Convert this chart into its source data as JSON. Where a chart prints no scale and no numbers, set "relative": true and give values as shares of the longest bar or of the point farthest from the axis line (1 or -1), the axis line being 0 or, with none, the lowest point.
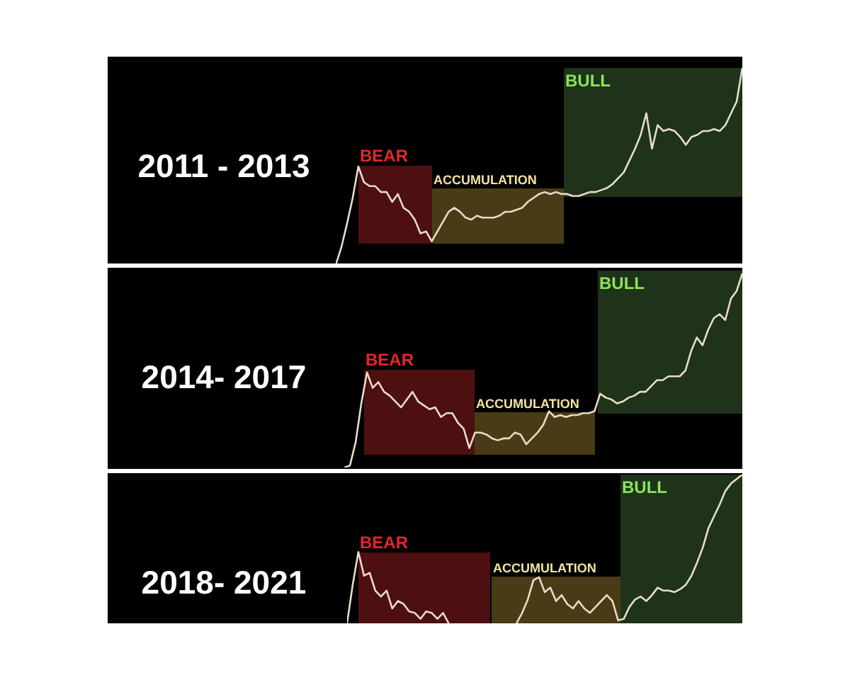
{
  "chart_data": [
    {
      "type": "line",
      "title": "2011 - 2013",
      "relative": true,
      "categories": [
        null,
        null,
        null,
        null,
        null,
        null,
        null,
        null,
        null,
        null,
        null,
        null,
        null,
        null,
        null,
        null,
        null,
        null,
        null,
        null,
        null,
        null,
        null,
        null,
        null,
        null,
        null,
        null,
        null,
        null,
        null,
        null,
        null,
        null,
        null,
        null,
        null,
        null,
        null,
        null,
        null,
        null,
        null,
        null,
        null,
        null,
        null,
        null,
        null,
        null,
        null,
        null,
        null,
        null,
        null,
        null,
        null,
        null,
        null,
        null,
        null,
        null,
        null,
        null,
        null,
        null,
        null,
        null,
        null,
        null,
        null,
        null,
        null
      ],
      "values": [
        0,
        0.09,
        0.21,
        0.34,
        0.5,
        0.42,
        0.4,
        0.4,
        0.37,
        0.37,
        0.32,
        0.36,
        0.29,
        0.27,
        0.23,
        0.16,
        0.17,
        0.12,
        0.17,
        0.22,
        0.27,
        0.29,
        0.27,
        0.24,
        0.23,
        0.25,
        0.24,
        0.24,
        0.24,
        0.25,
        0.27,
        0.27,
        0.28,
        0.29,
        0.32,
        0.34,
        0.36,
        0.37,
        0.36,
        0.37,
        0.36,
        0.36,
        0.35,
        0.35,
        0.36,
        0.37,
        0.37,
        0.38,
        0.39,
        0.41,
        0.44,
        0.47,
        0.53,
        0.59,
        0.66,
        0.77,
        0.59,
        0.71,
        0.68,
        0.69,
        0.68,
        0.65,
        0.61,
        0.65,
        0.66,
        0.68,
        0.68,
        0.69,
        0.68,
        0.71,
        0.77,
        0.83,
        1
      ],
      "color": "#e8dcc8",
      "annotations": [
        "BEAR",
        "ACCUMULATION",
        "BULL"
      ]
    },
    {
      "type": "line",
      "title": "2014- 2017",
      "relative": true,
      "categories": [
        null,
        null,
        null,
        null,
        null,
        null,
        null,
        null,
        null,
        null,
        null,
        null,
        null,
        null,
        null,
        null,
        null,
        null,
        null,
        null,
        null,
        null,
        null,
        null,
        null,
        null,
        null,
        null,
        null,
        null,
        null,
        null,
        null,
        null,
        null,
        null,
        null,
        null,
        null,
        null,
        null,
        null,
        null,
        null,
        null,
        null,
        null,
        null,
        null,
        null,
        null,
        null,
        null,
        null,
        null,
        null,
        null,
        null,
        null,
        null,
        null,
        null,
        null,
        null,
        null,
        null,
        null,
        null,
        null,
        null,
        null
      ],
      "values": [
        0,
        0.01,
        0.13,
        0.33,
        0.49,
        0.41,
        0.44,
        0.39,
        0.37,
        0.34,
        0.31,
        0.35,
        0.39,
        0.34,
        0.32,
        0.3,
        0.31,
        0.26,
        0.28,
        0.28,
        0.23,
        0.2,
        0.1,
        0.18,
        0.18,
        0.17,
        0.15,
        0.14,
        0.15,
        0.15,
        0.18,
        0.17,
        0.12,
        0.15,
        0.18,
        0.22,
        0.29,
        0.26,
        0.27,
        0.26,
        0.27,
        0.27,
        0.28,
        0.28,
        0.29,
        0.38,
        0.36,
        0.35,
        0.33,
        0.34,
        0.36,
        0.37,
        0.39,
        0.39,
        0.42,
        0.45,
        0.45,
        0.47,
        0.47,
        0.47,
        0.5,
        0.6,
        0.67,
        0.63,
        0.71,
        0.77,
        0.79,
        0.76,
        0.87,
        0.91,
        1
      ],
      "color": "#e8dcc8",
      "annotations": [
        "BEAR",
        "ACCUMULATION",
        "BULL"
      ]
    },
    {
      "type": "line",
      "title": "2018- 2021",
      "relative": true,
      "categories": [
        null,
        null,
        null,
        null,
        null,
        null,
        null,
        null,
        null,
        null,
        null,
        null,
        null,
        null,
        null,
        null,
        null,
        null,
        null,
        null,
        null,
        null,
        null,
        null,
        null,
        null,
        null,
        null,
        null,
        null,
        null,
        null,
        null,
        null,
        null,
        null,
        null,
        null,
        null,
        null,
        null,
        null,
        null,
        null,
        null,
        null,
        null,
        null,
        null,
        null,
        null,
        null,
        null,
        null,
        null,
        null,
        null,
        null,
        null,
        null,
        null,
        null,
        null,
        null,
        null,
        null,
        null,
        null,
        null,
        null,
        null
      ],
      "values": [
        0,
        0.26,
        0.48,
        0.32,
        0.34,
        0.22,
        0.18,
        0.22,
        0.1,
        0.15,
        0.13,
        0.08,
        0.07,
        0.03,
        0.08,
        0.07,
        0.03,
        0.07,
        0,
        null,
        null,
        null,
        null,
        null,
        null,
        null,
        null,
        null,
        null,
        null,
        0,
        0.07,
        0.16,
        0.29,
        0.31,
        0.21,
        0.24,
        0.15,
        0.19,
        0.13,
        0.1,
        0.15,
        0.1,
        0.07,
        0.11,
        0.15,
        0.19,
        0.15,
        0.02,
        0.03,
        0.11,
        0.16,
        0.18,
        0.15,
        0.19,
        0.24,
        0.22,
        0.22,
        0.21,
        0.23,
        0.26,
        0.32,
        0.41,
        0.51,
        0.64,
        0.72,
        0.8,
        0.89,
        0.94,
        0.97,
        1
      ],
      "color": "#e8dcc8",
      "annotations": [
        "BEAR",
        "ACCUMULATION",
        "BULL"
      ]
    }
  ]
}
